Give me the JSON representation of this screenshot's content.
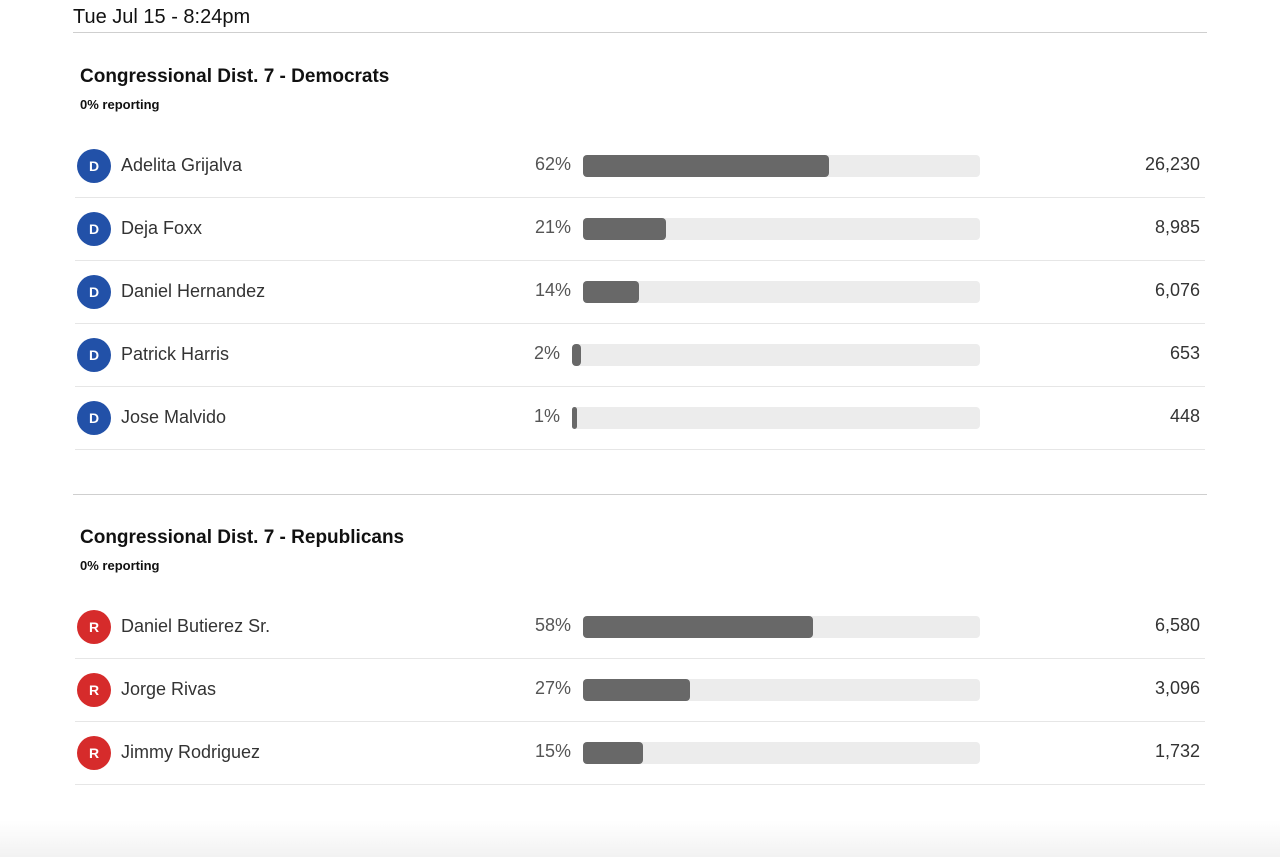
{
  "header": {
    "timestamp": "Tue Jul 15 - 8:24pm"
  },
  "colors": {
    "democrat": "#2251a8",
    "republican": "#d62b2b",
    "bar_fill": "#686868",
    "bar_track": "#ececec"
  },
  "races": [
    {
      "title": "Congressional Dist. 7 - Democrats",
      "reporting": "0% reporting",
      "candidates": [
        {
          "party": "D",
          "name": "Adelita Grijalva",
          "percent": "62%",
          "share": 0.62,
          "votes": "26,230"
        },
        {
          "party": "D",
          "name": "Deja Foxx",
          "percent": "21%",
          "share": 0.21,
          "votes": "8,985"
        },
        {
          "party": "D",
          "name": "Daniel Hernandez",
          "percent": "14%",
          "share": 0.14,
          "votes": "6,076"
        },
        {
          "party": "D",
          "name": "Patrick Harris",
          "percent": "2%",
          "share": 0.02,
          "votes": "653"
        },
        {
          "party": "D",
          "name": "Jose Malvido",
          "percent": "1%",
          "share": 0.01,
          "votes": "448"
        }
      ]
    },
    {
      "title": "Congressional Dist. 7 - Republicans",
      "reporting": "0% reporting",
      "candidates": [
        {
          "party": "R",
          "name": "Daniel Butierez Sr.",
          "percent": "58%",
          "share": 0.58,
          "votes": "6,580"
        },
        {
          "party": "R",
          "name": "Jorge Rivas",
          "percent": "27%",
          "share": 0.27,
          "votes": "3,096"
        },
        {
          "party": "R",
          "name": "Jimmy Rodriguez",
          "percent": "15%",
          "share": 0.15,
          "votes": "1,732"
        }
      ]
    }
  ]
}
